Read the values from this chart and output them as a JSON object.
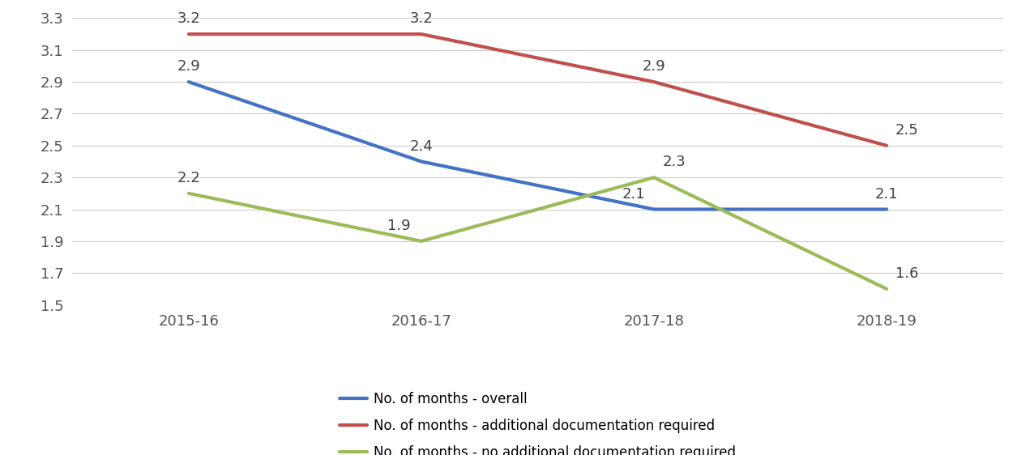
{
  "categories": [
    "2015-16",
    "2016-17",
    "2017-18",
    "2018-19"
  ],
  "series": [
    {
      "label": "No. of months - overall",
      "values": [
        2.9,
        2.4,
        2.1,
        2.1
      ],
      "color": "#4472C4"
    },
    {
      "label": "No. of months - additional documentation required",
      "values": [
        3.2,
        3.2,
        2.9,
        2.5
      ],
      "color": "#C0504D"
    },
    {
      "label": "No. of months - no additional documentation required",
      "values": [
        2.2,
        1.9,
        2.3,
        1.6
      ],
      "color": "#9BBB59"
    }
  ],
  "label_offsets_pts": [
    [
      [
        0,
        7
      ],
      [
        0,
        7
      ],
      [
        -18,
        7
      ],
      [
        0,
        7
      ]
    ],
    [
      [
        0,
        7
      ],
      [
        0,
        7
      ],
      [
        0,
        7
      ],
      [
        18,
        7
      ]
    ],
    [
      [
        0,
        7
      ],
      [
        -20,
        7
      ],
      [
        18,
        7
      ],
      [
        18,
        7
      ]
    ]
  ],
  "label_va": [
    [
      "bottom",
      "bottom",
      "bottom",
      "bottom"
    ],
    [
      "bottom",
      "bottom",
      "bottom",
      "bottom"
    ],
    [
      "bottom",
      "bottom",
      "bottom",
      "bottom"
    ]
  ],
  "ylim": [
    1.5,
    3.3
  ],
  "yticks": [
    1.5,
    1.7,
    1.9,
    2.1,
    2.3,
    2.5,
    2.7,
    2.9,
    3.1,
    3.3
  ],
  "background_color": "#ffffff",
  "grid_color": "#cccccc",
  "label_fontsize": 13,
  "tick_fontsize": 13,
  "legend_fontsize": 12,
  "line_width": 3.0
}
